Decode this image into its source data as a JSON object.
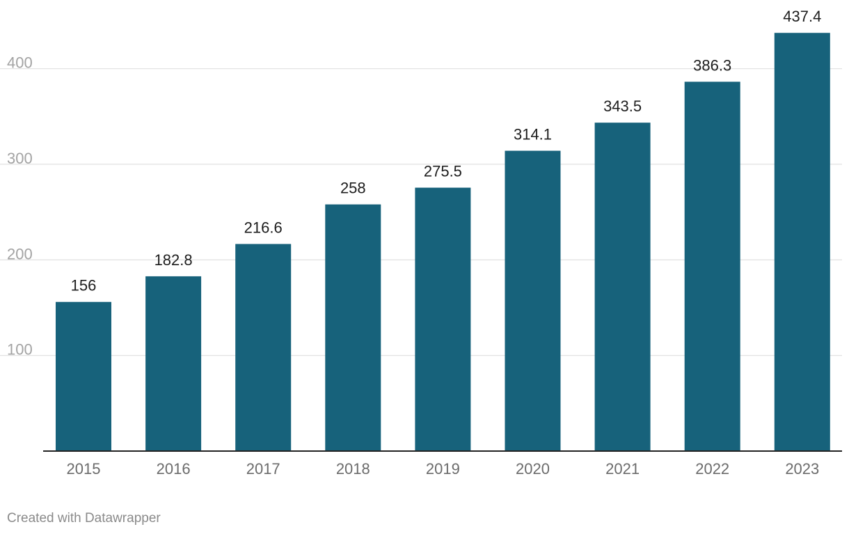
{
  "chart_data": {
    "type": "bar",
    "title": "",
    "xlabel": "",
    "ylabel": "",
    "categories": [
      "2015",
      "2016",
      "2017",
      "2018",
      "2019",
      "2020",
      "2021",
      "2022",
      "2023"
    ],
    "values": [
      156,
      182.8,
      216.6,
      258,
      275.5,
      314.1,
      343.5,
      386.3,
      437.4
    ],
    "value_labels": [
      "156",
      "182.8",
      "216.6",
      "258",
      "275.5",
      "314.1",
      "343.5",
      "386.3",
      "437.4"
    ],
    "y_ticks": [
      100,
      200,
      300,
      400
    ],
    "ylim": [
      0,
      437.4
    ],
    "grid": true,
    "legend": "none",
    "colors": {
      "bar": "#17627b",
      "grid": "#e3e3e3",
      "baseline": "#222222"
    }
  },
  "footer": {
    "credit": "Created with Datawrapper"
  }
}
